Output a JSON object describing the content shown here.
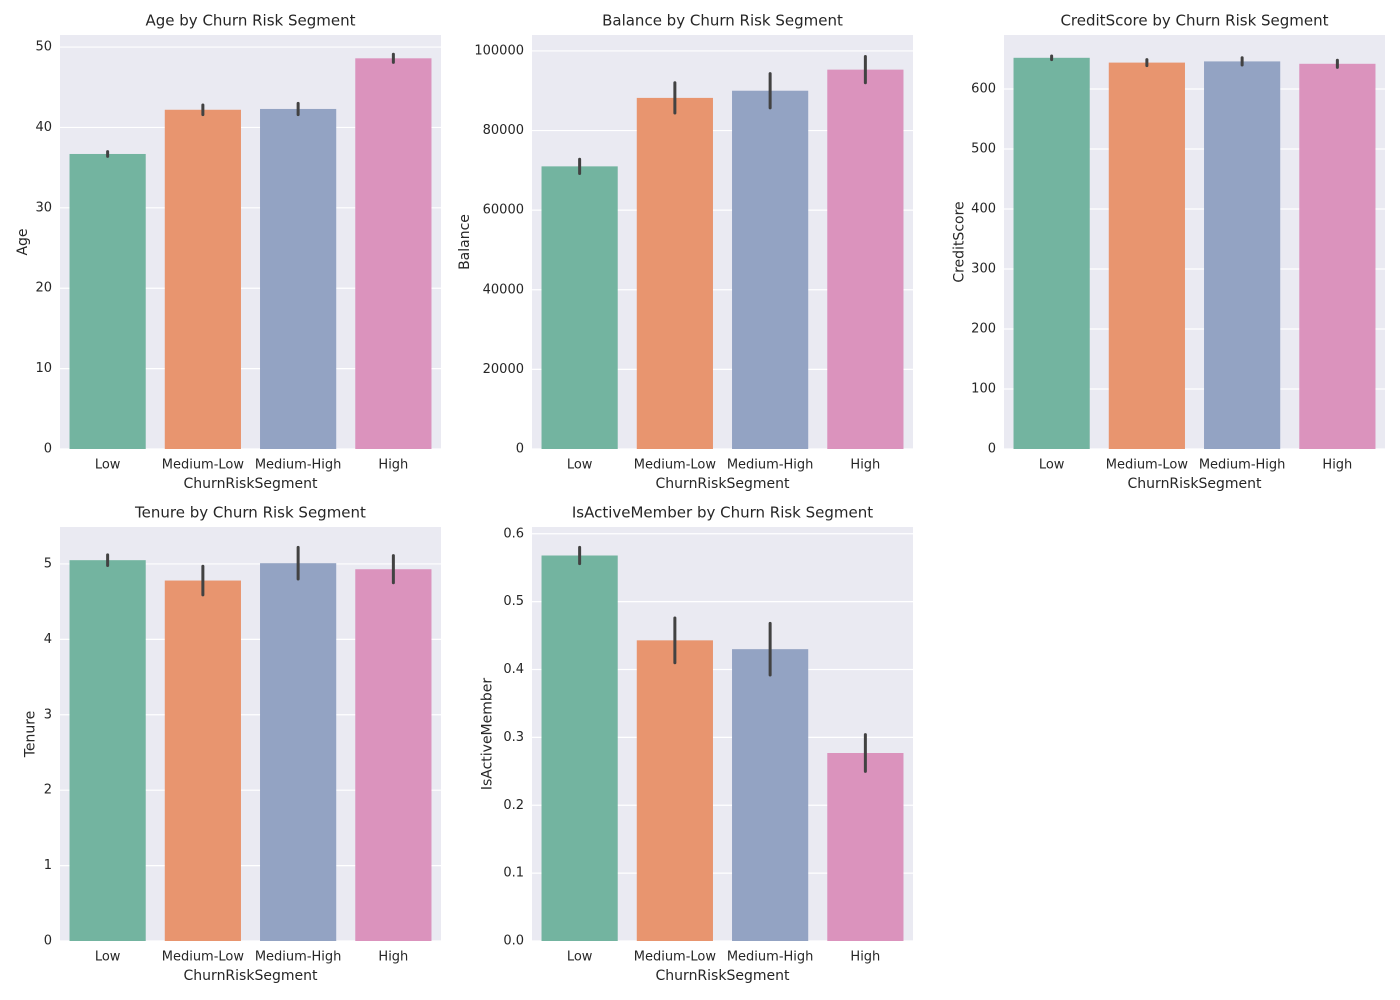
{
  "chart_data": [
    {
      "type": "bar",
      "title": "Age by Churn Risk Segment",
      "xlabel": "ChurnRiskSegment",
      "ylabel": "Age",
      "categories": [
        "Low",
        "Medium-Low",
        "Medium-High",
        "High"
      ],
      "values": [
        36.7,
        42.2,
        42.3,
        48.6
      ],
      "errors": [
        0.3,
        0.6,
        0.7,
        0.5
      ],
      "colors": [
        "#73b4a0",
        "#e8956f",
        "#93a3c3",
        "#db93bd"
      ],
      "ylim": [
        0,
        51.5
      ],
      "yticks": [
        0,
        10,
        20,
        30,
        40,
        50
      ],
      "grid": true
    },
    {
      "type": "bar",
      "title": "Balance by Churn Risk Segment",
      "xlabel": "ChurnRiskSegment",
      "ylabel": "Balance",
      "categories": [
        "Low",
        "Medium-Low",
        "Medium-High",
        "High"
      ],
      "values": [
        71000,
        88200,
        90000,
        95300
      ],
      "errors": [
        1800,
        3800,
        4300,
        3300
      ],
      "colors": [
        "#73b4a0",
        "#e8956f",
        "#93a3c3",
        "#db93bd"
      ],
      "ylim": [
        0,
        104000
      ],
      "yticks": [
        0,
        20000,
        40000,
        60000,
        80000,
        100000
      ],
      "grid": true
    },
    {
      "type": "bar",
      "title": "CreditScore by Churn Risk Segment",
      "xlabel": "ChurnRiskSegment",
      "ylabel": "CreditScore",
      "categories": [
        "Low",
        "Medium-Low",
        "Medium-High",
        "High"
      ],
      "values": [
        652,
        644,
        646,
        642
      ],
      "errors": [
        3,
        5,
        6,
        6
      ],
      "colors": [
        "#73b4a0",
        "#e8956f",
        "#93a3c3",
        "#db93bd"
      ],
      "ylim": [
        0,
        690
      ],
      "yticks": [
        0,
        100,
        200,
        300,
        400,
        500,
        600
      ],
      "grid": true
    },
    {
      "type": "bar",
      "title": "Tenure by Churn Risk Segment",
      "xlabel": "ChurnRiskSegment",
      "ylabel": "Tenure",
      "categories": [
        "Low",
        "Medium-Low",
        "Medium-High",
        "High"
      ],
      "values": [
        5.05,
        4.78,
        5.01,
        4.93
      ],
      "errors": [
        0.07,
        0.19,
        0.21,
        0.18
      ],
      "colors": [
        "#73b4a0",
        "#e8956f",
        "#93a3c3",
        "#db93bd"
      ],
      "ylim": [
        0,
        5.49
      ],
      "yticks": [
        0,
        1,
        2,
        3,
        4,
        5
      ],
      "grid": true
    },
    {
      "type": "bar",
      "title": "IsActiveMember by Churn Risk Segment",
      "xlabel": "ChurnRiskSegment",
      "ylabel": "IsActiveMember",
      "categories": [
        "Low",
        "Medium-Low",
        "Medium-High",
        "High"
      ],
      "values": [
        0.568,
        0.443,
        0.43,
        0.277
      ],
      "errors": [
        0.012,
        0.033,
        0.038,
        0.027
      ],
      "colors": [
        "#73b4a0",
        "#e8956f",
        "#93a3c3",
        "#db93bd"
      ],
      "ylim": [
        0,
        0.61
      ],
      "yticks": [
        {
          "value": 0,
          "label": "0.0"
        },
        0.1,
        0.2,
        0.3,
        0.4,
        0.5,
        0.6
      ],
      "grid": true
    }
  ]
}
